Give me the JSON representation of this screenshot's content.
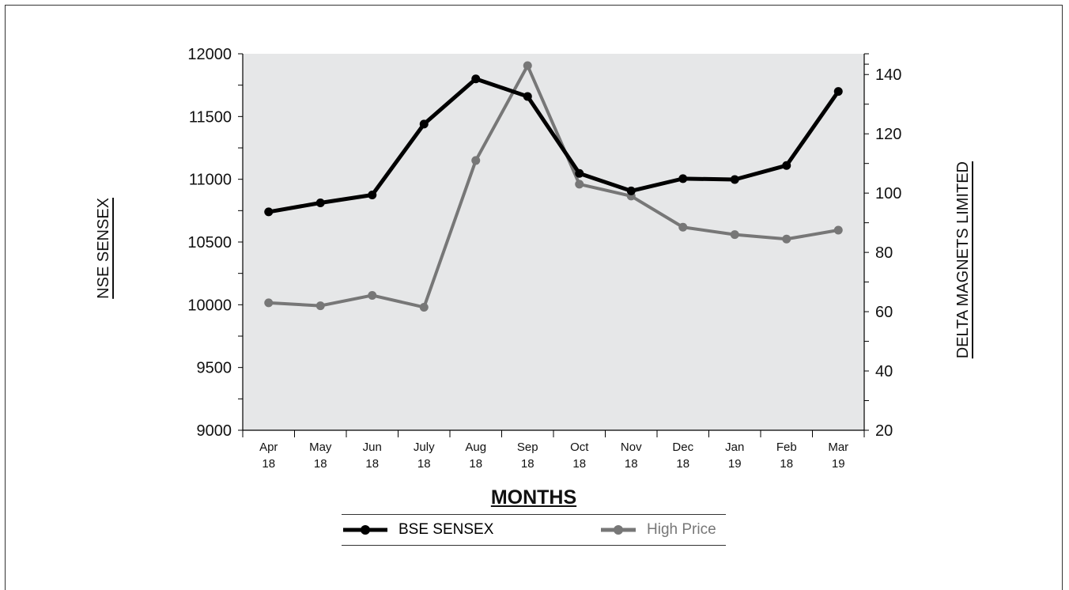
{
  "chart_data": {
    "type": "line",
    "xlabel": "MONTHS",
    "ylabel_left": "NSE SENSEX",
    "ylabel_right": "DELTA MAGNETS LIMITED",
    "categories": [
      [
        "Apr",
        "18"
      ],
      [
        "May",
        "18"
      ],
      [
        "Jun",
        "18"
      ],
      [
        "July",
        "18"
      ],
      [
        "Aug",
        "18"
      ],
      [
        "Sep",
        "18"
      ],
      [
        "Oct",
        "18"
      ],
      [
        "Nov",
        "18"
      ],
      [
        "Dec",
        "18"
      ],
      [
        "Jan",
        "19"
      ],
      [
        "Feb",
        "18"
      ],
      [
        "Mar",
        "19"
      ]
    ],
    "y_left": {
      "min": 9000,
      "max": 12000,
      "ticks": [
        9000,
        9500,
        10000,
        10500,
        11000,
        11500,
        12000
      ]
    },
    "y_right": {
      "min": 20,
      "max": 147,
      "ticks": [
        20,
        40,
        60,
        80,
        100,
        120,
        140
      ]
    },
    "series": [
      {
        "name": "BSE SENSEX",
        "axis": "left",
        "color": "#000000",
        "values": [
          10740,
          10812,
          10875,
          11440,
          11800,
          11660,
          11047,
          10907,
          11005,
          10998,
          11110,
          11700
        ]
      },
      {
        "name": "High Price",
        "axis": "right",
        "color": "#777777",
        "values": [
          63,
          62,
          65.5,
          61.5,
          111,
          143,
          103,
          99,
          88.5,
          86,
          84.5,
          87.5
        ]
      }
    ],
    "grid": false,
    "legend_position": "bottom"
  }
}
